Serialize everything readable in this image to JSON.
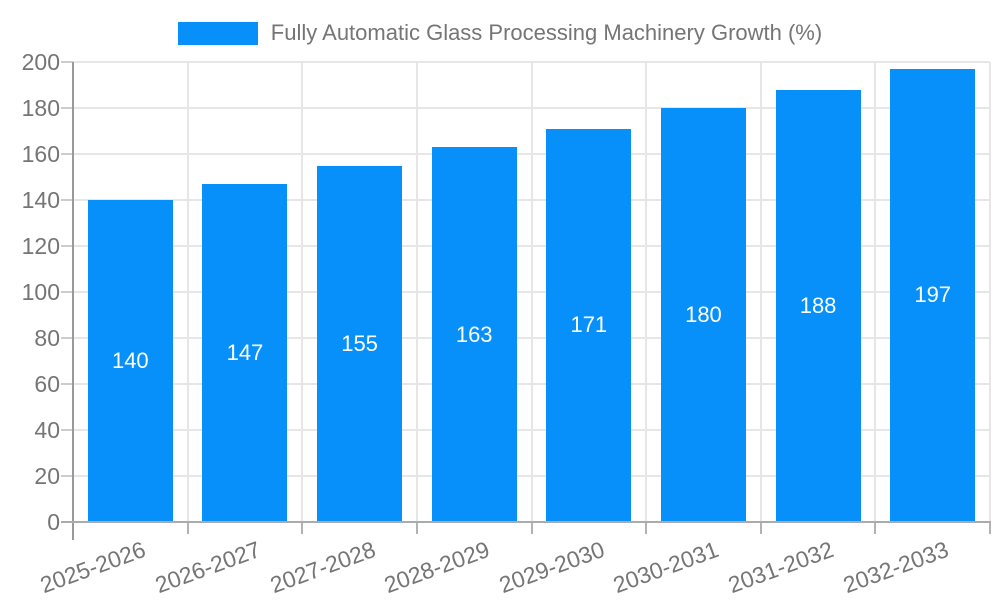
{
  "chart_data": {
    "type": "bar",
    "title": "Fully Automatic Glass Processing Machinery Growth (%)",
    "categories": [
      "2025-2026",
      "2026-2027",
      "2027-2028",
      "2028-2029",
      "2029-2030",
      "2030-2031",
      "2031-2032",
      "2032-2033"
    ],
    "series": [
      {
        "name": "Fully Automatic Glass Processing Machinery Growth (%)",
        "values": [
          140,
          147,
          155,
          163,
          171,
          180,
          188,
          197
        ]
      }
    ],
    "xlabel": "",
    "ylabel": "",
    "ylim": [
      0,
      200
    ],
    "y_ticks": [
      0,
      20,
      40,
      60,
      80,
      100,
      120,
      140,
      160,
      180,
      200
    ],
    "grid": true,
    "legend_position": "top",
    "bar_labels_shown": true,
    "colors": {
      "bar": "#0890FA",
      "bar_label": "#FFFFFF",
      "axis_text": "#757575",
      "gridline": "#E6E6E6",
      "axis_line": "#999999",
      "background": "#FFFFFF"
    }
  }
}
